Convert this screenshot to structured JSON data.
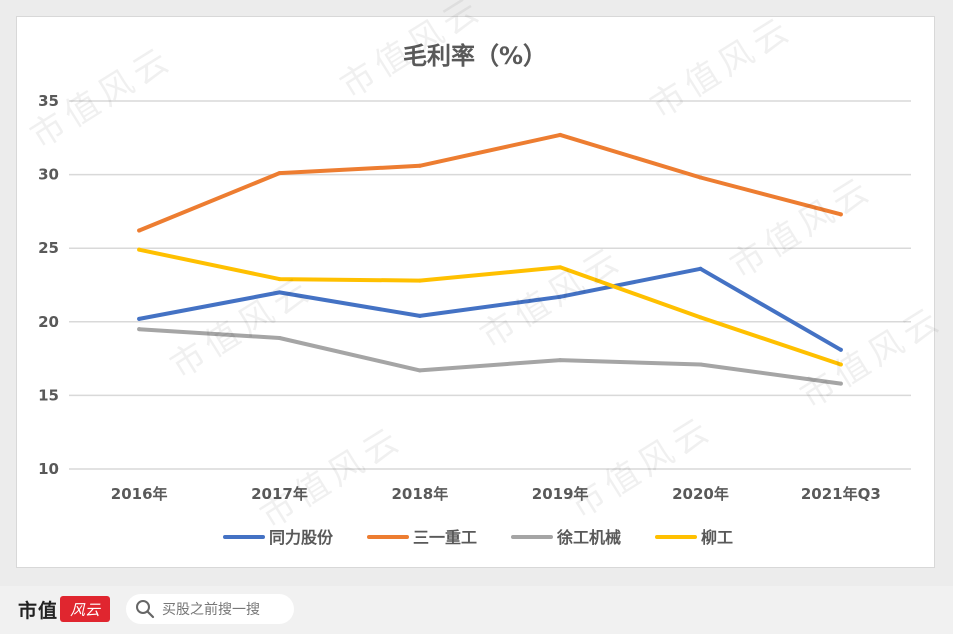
{
  "chart_data": {
    "type": "line",
    "title": "毛利率（%）",
    "categories": [
      "2016年",
      "2017年",
      "2018年",
      "2019年",
      "2020年",
      "2021年Q3"
    ],
    "ylim": [
      10,
      35
    ],
    "yticks": [
      10,
      15,
      20,
      25,
      30,
      35
    ],
    "grid": true,
    "legend_position": "bottom",
    "series": [
      {
        "name": "同力股份",
        "color": "#4472c4",
        "values": [
          20.2,
          22.0,
          20.4,
          21.7,
          23.6,
          18.1
        ]
      },
      {
        "name": "三一重工",
        "color": "#ed7d31",
        "values": [
          26.2,
          30.1,
          30.6,
          32.7,
          29.8,
          27.3
        ]
      },
      {
        "name": "徐工机械",
        "color": "#a5a5a5",
        "values": [
          19.5,
          18.9,
          16.7,
          17.4,
          17.1,
          15.8
        ]
      },
      {
        "name": "柳工",
        "color": "#ffc000",
        "values": [
          24.9,
          22.9,
          22.8,
          23.7,
          20.3,
          17.1
        ]
      }
    ]
  },
  "footer": {
    "brand": "市值",
    "brand_mark": "风云",
    "search_placeholder": "买股之前搜一搜",
    "search_icon": "search-icon"
  },
  "watermark_text": "市值风云"
}
